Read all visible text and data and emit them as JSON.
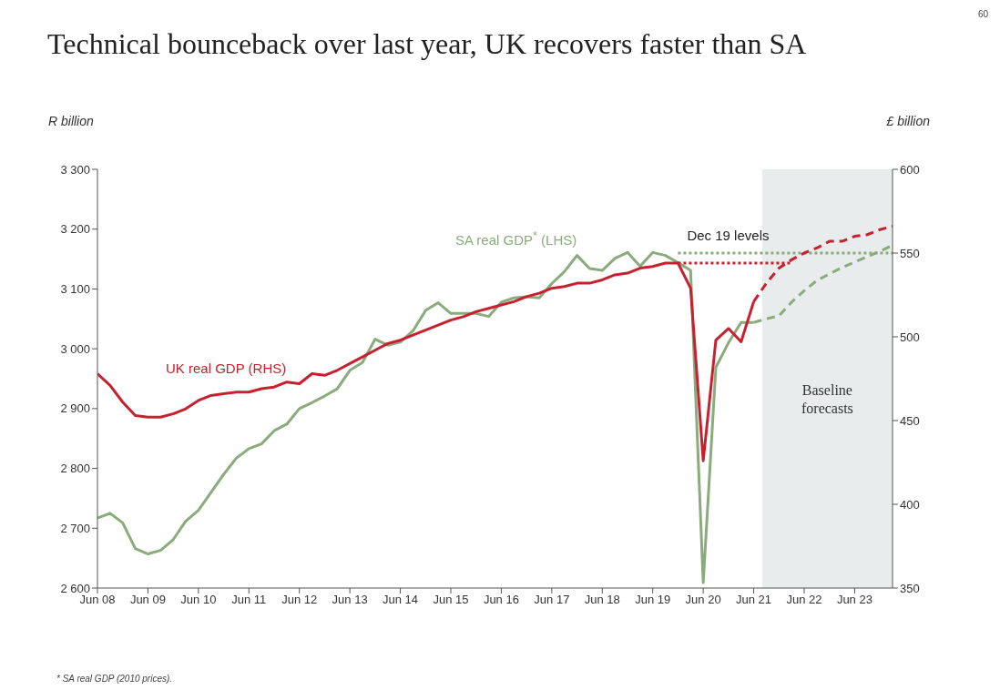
{
  "chart_data": {
    "type": "line",
    "title": "Technical bounceback over last year, UK recovers faster than SA",
    "ylabel": "R billion",
    "y2label": "£ billion",
    "x": [
      "2008-06",
      "2008-09",
      "2008-12",
      "2009-03",
      "2009-06",
      "2009-09",
      "2009-12",
      "2010-03",
      "2010-06",
      "2010-09",
      "2010-12",
      "2011-03",
      "2011-06",
      "2011-09",
      "2011-12",
      "2012-03",
      "2012-06",
      "2012-09",
      "2012-12",
      "2013-03",
      "2013-06",
      "2013-09",
      "2013-12",
      "2014-03",
      "2014-06",
      "2014-09",
      "2014-12",
      "2015-03",
      "2015-06",
      "2015-09",
      "2015-12",
      "2016-03",
      "2016-06",
      "2016-09",
      "2016-12",
      "2017-03",
      "2017-06",
      "2017-09",
      "2017-12",
      "2018-03",
      "2018-06",
      "2018-09",
      "2018-12",
      "2019-03",
      "2019-06",
      "2019-09",
      "2019-12",
      "2020-03",
      "2020-06",
      "2020-09",
      "2020-12",
      "2021-03",
      "2021-06",
      "2021-09",
      "2021-12",
      "2022-03",
      "2022-06",
      "2022-09",
      "2022-12",
      "2023-03",
      "2023-06",
      "2023-09",
      "2023-12",
      "2024-03"
    ],
    "series": [
      {
        "name": "SA real GDP$^{*}$ (LHS)",
        "color": "#8aab7c",
        "line_style": "solid",
        "values": [
          2717,
          2725,
          2709,
          2666,
          2657,
          2663,
          2681,
          2712,
          2730,
          2760,
          2790,
          2817,
          2833,
          2841,
          2863,
          2874,
          2900,
          2910,
          2921,
          2933,
          2964,
          2977,
          3016,
          3006,
          3011,
          3030,
          3064,
          3077,
          3059,
          3059,
          3059,
          3054,
          3078,
          3085,
          3087,
          3085,
          3109,
          3129,
          3156,
          3134,
          3131,
          3151,
          3161,
          3138,
          3161,
          3156,
          3144,
          3131,
          2609,
          2969,
          3010,
          3044,
          3044,
          null,
          null,
          null,
          null,
          null,
          null,
          null,
          null,
          null,
          null,
          null
        ]
      },
      {
        "color": "#8aab7c",
        "line_style": "dashed",
        "values": [
          null,
          null,
          null,
          null,
          null,
          null,
          null,
          null,
          null,
          null,
          null,
          null,
          null,
          null,
          null,
          null,
          null,
          null,
          null,
          null,
          null,
          null,
          null,
          null,
          null,
          null,
          null,
          null,
          null,
          null,
          null,
          null,
          null,
          null,
          null,
          null,
          null,
          null,
          null,
          null,
          null,
          null,
          null,
          null,
          null,
          null,
          null,
          null,
          null,
          null,
          null,
          null,
          3044,
          3050,
          3055,
          3078,
          3097,
          3114,
          3125,
          3136,
          3145,
          3154,
          3163,
          3173
        ]
      },
      {
        "color": "#8aab7c",
        "line_style": "dotted",
        "x": [
          "2019-12",
          "2024-03"
        ],
        "values": [
          3160,
          3160
        ]
      },
      {
        "name": "UK real GDP (RHS)",
        "color": "#c8202f",
        "line_style": "solid",
        "axis": "y2",
        "values": [
          478,
          471,
          461,
          453,
          452,
          452,
          454,
          457,
          462,
          465,
          466,
          467,
          467,
          469,
          470,
          473,
          472,
          478,
          477,
          480,
          484,
          488,
          492,
          496,
          498,
          501,
          504,
          507,
          510,
          512,
          515,
          517,
          519,
          521,
          524,
          526,
          529,
          530,
          532,
          532,
          534,
          537,
          538,
          541,
          542,
          544,
          544,
          529,
          426,
          498,
          505,
          497,
          521,
          null,
          null,
          null,
          null,
          null,
          null,
          null,
          null,
          null,
          null,
          null
        ]
      },
      {
        "color": "#c8202f",
        "line_style": "dashed",
        "axis": "y2",
        "values": [
          null,
          null,
          null,
          null,
          null,
          null,
          null,
          null,
          null,
          null,
          null,
          null,
          null,
          null,
          null,
          null,
          null,
          null,
          null,
          null,
          null,
          null,
          null,
          null,
          null,
          null,
          null,
          null,
          null,
          null,
          null,
          null,
          null,
          null,
          null,
          null,
          null,
          null,
          null,
          null,
          null,
          null,
          null,
          null,
          null,
          null,
          null,
          null,
          null,
          null,
          null,
          null,
          521,
          532,
          541,
          546,
          550,
          553,
          557,
          557,
          560,
          561,
          564,
          566
        ]
      },
      {
        "color": "#c8202f",
        "line_style": "dotted",
        "axis": "y2",
        "x": [
          "2019-12",
          "2022-03"
        ],
        "values": [
          544,
          544
        ]
      }
    ],
    "xlim": [
      "2008-06",
      "2024-03"
    ],
    "xticks": [
      {
        "value": "2008-06",
        "label": "Jun 08"
      },
      {
        "value": "2009-06",
        "label": "Jun 09"
      },
      {
        "value": "2010-06",
        "label": "Jun 10"
      },
      {
        "value": "2011-06",
        "label": "Jun 11"
      },
      {
        "value": "2012-06",
        "label": "Jun 12"
      },
      {
        "value": "2013-06",
        "label": "Jun 13"
      },
      {
        "value": "2014-06",
        "label": "Jun 14"
      },
      {
        "value": "2015-06",
        "label": "Jun 15"
      },
      {
        "value": "2016-06",
        "label": "Jun 16"
      },
      {
        "value": "2017-06",
        "label": "Jun 17"
      },
      {
        "value": "2018-06",
        "label": "Jun 18"
      },
      {
        "value": "2019-06",
        "label": "Jun 19"
      },
      {
        "value": "2020-06",
        "label": "Jun 20"
      },
      {
        "value": "2021-06",
        "label": "Jun 21"
      },
      {
        "value": "2022-06",
        "label": "Jun 22"
      },
      {
        "value": "2023-06",
        "label": "Jun 23"
      }
    ],
    "ylim": [
      2600,
      3300
    ],
    "yticks": [
      {
        "value": 2600,
        "label": "2 600"
      },
      {
        "value": 2700,
        "label": "2 700"
      },
      {
        "value": 2800,
        "label": "2 800"
      },
      {
        "value": 2900,
        "label": "2 900"
      },
      {
        "value": 3000,
        "label": "3 000"
      },
      {
        "value": 3100,
        "label": "3 100"
      },
      {
        "value": 3200,
        "label": "3 200"
      },
      {
        "value": 3300,
        "label": "3 300"
      }
    ],
    "y2lim": [
      350,
      600
    ],
    "y2ticks": [
      350,
      400,
      450,
      500,
      550,
      600
    ],
    "bands": [
      {
        "axis": "x",
        "from": "2021-08",
        "to": "2024-03",
        "label": "Baseline forecasts",
        "color": "#e8eced"
      }
    ],
    "annotations": [
      {
        "text": "Dec 19 levels",
        "x": "2019-12",
        "y": 3160
      },
      "* SA real GDP (2010 prices).",
      "60"
    ]
  }
}
